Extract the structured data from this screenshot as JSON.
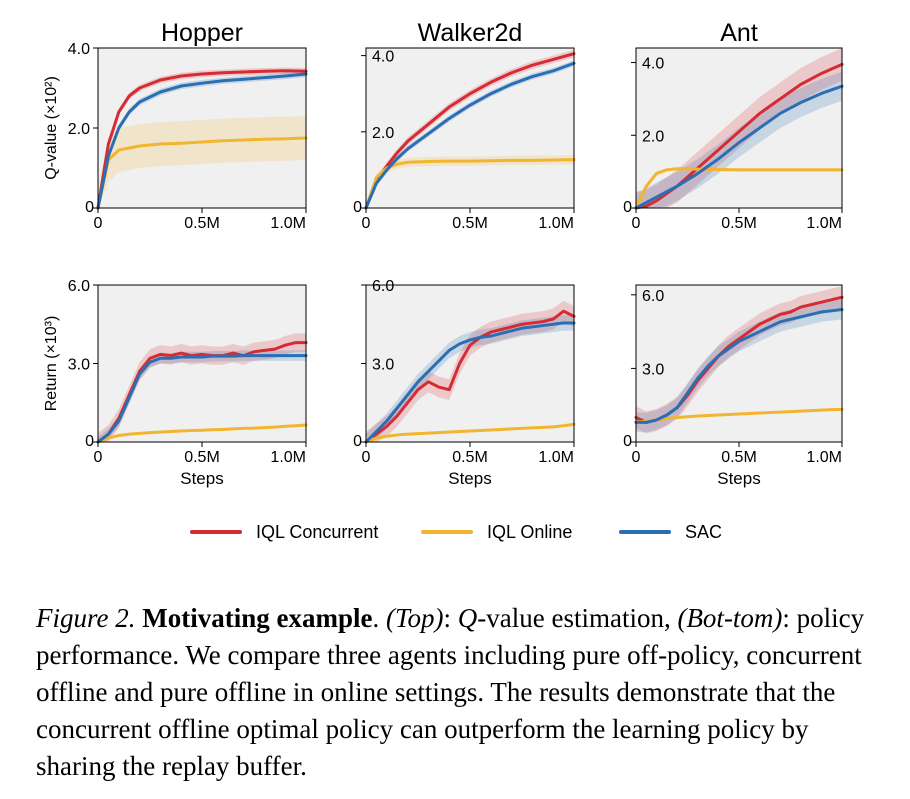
{
  "colors": {
    "iql_concurrent": "#d62b33",
    "iql_online": "#f2b530",
    "sac": "#2a6eb4",
    "panel_bg": "#f0f0f0"
  },
  "legend": {
    "placement": "bottom-center",
    "entries": [
      "IQL Concurrent",
      "IQL Online",
      "SAC"
    ]
  },
  "caption": {
    "fig_label": "Figure 2.",
    "title": "Motivating example",
    "p1": ". ",
    "top_label": "(Top)",
    "p2": ": ",
    "q_var": "Q",
    "p3": "-value estimation, ",
    "bottom_label": "(Bot-tom)",
    "p4": ": policy performance. We compare three agents including pure off-policy, concurrent offline and pure offline in online settings. The results demonstrate that the concurrent offline optimal policy can outperform the learning policy by sharing the replay buffer."
  },
  "chart_data": [
    {
      "type": "line",
      "title": "Hopper",
      "row": "top",
      "ylabel": "Q-value (×10²)",
      "xlabel": "",
      "xlim": [
        0,
        1.0
      ],
      "ylim": [
        0,
        4.0
      ],
      "xticks": [
        "0",
        "0.5M",
        "1.0M"
      ],
      "yticks": [
        "0",
        "2.0",
        "4.0"
      ],
      "x": [
        0,
        0.05,
        0.1,
        0.15,
        0.2,
        0.3,
        0.4,
        0.5,
        0.6,
        0.7,
        0.8,
        0.9,
        1.0
      ],
      "series": [
        {
          "name": "IQL Concurrent",
          "values": [
            0,
            1.6,
            2.4,
            2.8,
            3.0,
            3.2,
            3.3,
            3.35,
            3.38,
            3.4,
            3.42,
            3.43,
            3.42
          ],
          "band": 0.08
        },
        {
          "name": "IQL Online",
          "values": [
            0,
            1.2,
            1.45,
            1.5,
            1.55,
            1.6,
            1.62,
            1.65,
            1.68,
            1.7,
            1.72,
            1.73,
            1.75
          ],
          "band": 0.55
        },
        {
          "name": "SAC",
          "values": [
            0,
            1.3,
            2.0,
            2.4,
            2.65,
            2.9,
            3.05,
            3.12,
            3.18,
            3.22,
            3.26,
            3.3,
            3.35
          ],
          "band": 0.08
        }
      ]
    },
    {
      "type": "line",
      "title": "Walker2d",
      "row": "top",
      "ylabel": "",
      "xlabel": "",
      "xlim": [
        0,
        1.0
      ],
      "ylim": [
        0,
        4.2
      ],
      "xticks": [
        "0",
        "0.5M",
        "1.0M"
      ],
      "yticks": [
        "0",
        "2.0",
        "4.0"
      ],
      "x": [
        0,
        0.05,
        0.1,
        0.15,
        0.2,
        0.3,
        0.4,
        0.5,
        0.6,
        0.7,
        0.8,
        0.9,
        1.0
      ],
      "series": [
        {
          "name": "IQL Concurrent",
          "values": [
            0,
            0.7,
            1.1,
            1.45,
            1.75,
            2.2,
            2.65,
            3.0,
            3.3,
            3.55,
            3.75,
            3.9,
            4.05
          ],
          "band": 0.1
        },
        {
          "name": "IQL Online",
          "values": [
            0,
            0.8,
            1.05,
            1.15,
            1.2,
            1.22,
            1.23,
            1.23,
            1.24,
            1.25,
            1.25,
            1.26,
            1.27
          ],
          "band": 0.12
        },
        {
          "name": "SAC",
          "values": [
            0,
            0.65,
            1.0,
            1.3,
            1.55,
            1.95,
            2.35,
            2.7,
            3.0,
            3.25,
            3.45,
            3.6,
            3.8
          ],
          "band": 0.08
        }
      ]
    },
    {
      "type": "line",
      "title": "Ant",
      "row": "top",
      "ylabel": "",
      "xlabel": "",
      "xlim": [
        0,
        1.0
      ],
      "ylim": [
        0,
        4.4
      ],
      "xticks": [
        "0",
        "0.5M",
        "1.0M"
      ],
      "yticks": [
        "0",
        "2.0",
        "4.0"
      ],
      "x": [
        0,
        0.05,
        0.1,
        0.15,
        0.2,
        0.3,
        0.4,
        0.5,
        0.6,
        0.7,
        0.8,
        0.9,
        1.0
      ],
      "series": [
        {
          "name": "IQL Concurrent",
          "values": [
            0,
            0.05,
            0.2,
            0.4,
            0.6,
            1.1,
            1.6,
            2.1,
            2.6,
            3.0,
            3.4,
            3.7,
            3.95
          ],
          "band": 0.45
        },
        {
          "name": "IQL Online",
          "values": [
            0,
            0.6,
            0.95,
            1.05,
            1.08,
            1.07,
            1.06,
            1.05,
            1.05,
            1.05,
            1.05,
            1.05,
            1.05
          ],
          "band": 0.05
        },
        {
          "name": "SAC",
          "values": [
            0,
            0.15,
            0.3,
            0.45,
            0.6,
            0.95,
            1.35,
            1.8,
            2.2,
            2.6,
            2.9,
            3.15,
            3.35
          ],
          "band": 0.4
        }
      ]
    },
    {
      "type": "line",
      "title": "",
      "row": "bottom",
      "ylabel": "Return (×10³)",
      "xlabel": "Steps",
      "xlim": [
        0,
        1.0
      ],
      "ylim": [
        0,
        6.0
      ],
      "xticks": [
        "0",
        "0.5M",
        "1.0M"
      ],
      "yticks": [
        "0",
        "3.0",
        "6.0"
      ],
      "x": [
        0,
        0.05,
        0.1,
        0.15,
        0.2,
        0.25,
        0.3,
        0.35,
        0.4,
        0.45,
        0.5,
        0.55,
        0.6,
        0.65,
        0.7,
        0.75,
        0.8,
        0.85,
        0.9,
        0.95,
        1.0
      ],
      "series": [
        {
          "name": "IQL Concurrent",
          "values": [
            0,
            0.3,
            0.9,
            1.8,
            2.7,
            3.2,
            3.35,
            3.3,
            3.4,
            3.3,
            3.35,
            3.3,
            3.3,
            3.4,
            3.3,
            3.45,
            3.5,
            3.55,
            3.7,
            3.8,
            3.8
          ],
          "band": 0.35
        },
        {
          "name": "IQL Online",
          "values": [
            0,
            0.15,
            0.25,
            0.3,
            0.33,
            0.36,
            0.38,
            0.4,
            0.42,
            0.44,
            0.45,
            0.47,
            0.48,
            0.5,
            0.52,
            0.53,
            0.55,
            0.57,
            0.6,
            0.62,
            0.65
          ],
          "band": 0.05
        },
        {
          "name": "SAC",
          "values": [
            0,
            0.3,
            0.8,
            1.7,
            2.6,
            3.05,
            3.2,
            3.2,
            3.25,
            3.25,
            3.25,
            3.28,
            3.28,
            3.28,
            3.3,
            3.3,
            3.3,
            3.3,
            3.3,
            3.3,
            3.3
          ],
          "band": 0.2
        }
      ]
    },
    {
      "type": "line",
      "title": "",
      "row": "bottom",
      "ylabel": "",
      "xlabel": "Steps",
      "xlim": [
        0,
        1.0
      ],
      "ylim": [
        0,
        6.0
      ],
      "xticks": [
        "0",
        "0.5M",
        "1.0M"
      ],
      "yticks": [
        "0",
        "3.0",
        "6.0"
      ],
      "x": [
        0,
        0.05,
        0.1,
        0.15,
        0.2,
        0.25,
        0.3,
        0.35,
        0.4,
        0.45,
        0.5,
        0.55,
        0.6,
        0.65,
        0.7,
        0.75,
        0.8,
        0.85,
        0.9,
        0.95,
        1.0
      ],
      "series": [
        {
          "name": "IQL Concurrent",
          "values": [
            0,
            0.3,
            0.6,
            1.0,
            1.5,
            2.0,
            2.3,
            2.1,
            2.0,
            3.0,
            3.7,
            4.0,
            4.2,
            4.3,
            4.4,
            4.5,
            4.55,
            4.6,
            4.7,
            5.0,
            4.8
          ],
          "band": 0.4
        },
        {
          "name": "IQL Online",
          "values": [
            0,
            0.15,
            0.22,
            0.27,
            0.3,
            0.32,
            0.34,
            0.36,
            0.38,
            0.4,
            0.42,
            0.44,
            0.46,
            0.48,
            0.5,
            0.52,
            0.54,
            0.56,
            0.58,
            0.62,
            0.68
          ],
          "band": 0.05
        },
        {
          "name": "SAC",
          "values": [
            0,
            0.4,
            0.8,
            1.3,
            1.8,
            2.3,
            2.7,
            3.1,
            3.5,
            3.75,
            3.9,
            4.0,
            4.05,
            4.15,
            4.25,
            4.35,
            4.4,
            4.45,
            4.5,
            4.55,
            4.55
          ],
          "band": 0.3
        }
      ]
    },
    {
      "type": "line",
      "title": "",
      "row": "bottom",
      "ylabel": "",
      "xlabel": "Steps",
      "xlim": [
        0,
        1.0
      ],
      "ylim": [
        0,
        6.4
      ],
      "xticks": [
        "0",
        "0.5M",
        "1.0M"
      ],
      "yticks": [
        "0",
        "3.0",
        "6.0"
      ],
      "x": [
        0,
        0.05,
        0.1,
        0.15,
        0.2,
        0.25,
        0.3,
        0.35,
        0.4,
        0.45,
        0.5,
        0.55,
        0.6,
        0.65,
        0.7,
        0.75,
        0.8,
        0.85,
        0.9,
        0.95,
        1.0
      ],
      "series": [
        {
          "name": "IQL Concurrent",
          "values": [
            1.0,
            0.8,
            0.9,
            1.1,
            1.4,
            1.9,
            2.5,
            3.0,
            3.5,
            3.9,
            4.2,
            4.5,
            4.8,
            5.0,
            5.2,
            5.3,
            5.5,
            5.6,
            5.7,
            5.8,
            5.9
          ],
          "band": 0.45
        },
        {
          "name": "IQL Online",
          "values": [
            0.8,
            0.85,
            0.9,
            0.95,
            1.0,
            1.03,
            1.06,
            1.08,
            1.1,
            1.12,
            1.14,
            1.16,
            1.18,
            1.2,
            1.22,
            1.24,
            1.26,
            1.28,
            1.3,
            1.32,
            1.33
          ],
          "band": 0.05
        },
        {
          "name": "SAC",
          "values": [
            0.8,
            0.8,
            0.9,
            1.1,
            1.4,
            2.0,
            2.6,
            3.1,
            3.5,
            3.8,
            4.1,
            4.3,
            4.5,
            4.7,
            4.9,
            5.0,
            5.1,
            5.2,
            5.3,
            5.35,
            5.4
          ],
          "band": 0.4
        }
      ]
    }
  ]
}
